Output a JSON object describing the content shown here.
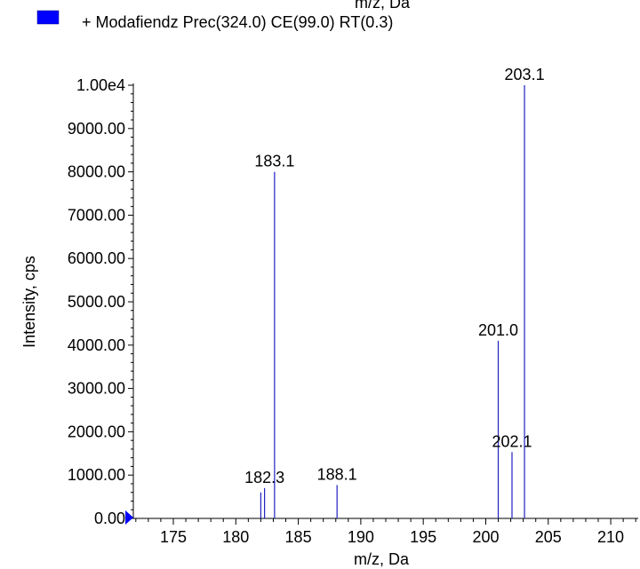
{
  "top_cut_label": "m/z, Da",
  "legend": {
    "text": "+ Modafiendz Prec(324.0) CE(99.0) RT(0.3)",
    "swatch_color": "#0000ff"
  },
  "colors": {
    "peak": "#2020c0",
    "axis": "#000000",
    "marker": "#0000ff"
  },
  "chart_data": {
    "type": "bar",
    "title": "",
    "xlabel": "m/z, Da",
    "ylabel": "Intensity, cps",
    "xlim": [
      171.8,
      212.2
    ],
    "ylim": [
      0,
      10000
    ],
    "grid": false,
    "x_ticks": [
      175,
      180,
      185,
      190,
      195,
      200,
      205,
      210
    ],
    "y_ticks": [
      {
        "v": 0,
        "t": "0.00"
      },
      {
        "v": 1000,
        "t": "1000.00"
      },
      {
        "v": 2000,
        "t": "2000.00"
      },
      {
        "v": 3000,
        "t": "3000.00"
      },
      {
        "v": 4000,
        "t": "4000.00"
      },
      {
        "v": 5000,
        "t": "5000.00"
      },
      {
        "v": 6000,
        "t": "6000.00"
      },
      {
        "v": 7000,
        "t": "7000.00"
      },
      {
        "v": 8000,
        "t": "8000.00"
      },
      {
        "v": 9000,
        "t": "9000.00"
      },
      {
        "v": 10000,
        "t": "1.00e4"
      }
    ],
    "peaks": [
      {
        "x": 182.0,
        "y": 600
      },
      {
        "x": 182.3,
        "y": 700,
        "label": "182.3"
      },
      {
        "x": 183.1,
        "y": 8000,
        "label": "183.1"
      },
      {
        "x": 188.1,
        "y": 770,
        "label": "188.1"
      },
      {
        "x": 201.0,
        "y": 4100,
        "label": "201.0"
      },
      {
        "x": 202.1,
        "y": 1530,
        "label": "202.1"
      },
      {
        "x": 203.1,
        "y": 10000,
        "label": "203.1"
      }
    ]
  }
}
